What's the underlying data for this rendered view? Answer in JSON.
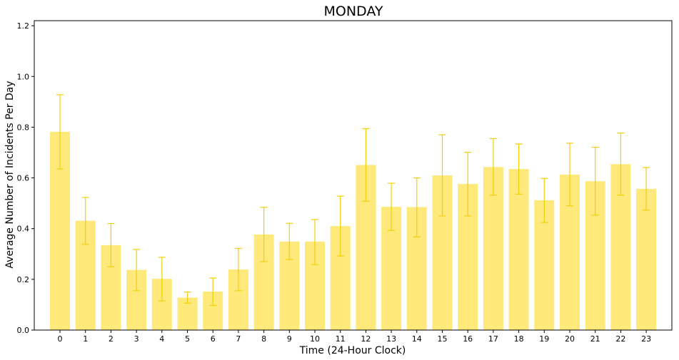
{
  "chart_data": {
    "type": "bar",
    "title": "MONDAY",
    "xlabel": "Time (24-Hour Clock)",
    "ylabel": "Average Number of Incidents Per Day",
    "categories": [
      "0",
      "1",
      "2",
      "3",
      "4",
      "5",
      "6",
      "7",
      "8",
      "9",
      "10",
      "11",
      "12",
      "13",
      "14",
      "15",
      "16",
      "17",
      "18",
      "19",
      "20",
      "21",
      "22",
      "23"
    ],
    "values": [
      0.782,
      0.431,
      0.335,
      0.237,
      0.202,
      0.128,
      0.152,
      0.239,
      0.377,
      0.349,
      0.349,
      0.41,
      0.651,
      0.486,
      0.485,
      0.61,
      0.576,
      0.643,
      0.635,
      0.512,
      0.613,
      0.587,
      0.654,
      0.557
    ],
    "error_low": [
      0.635,
      0.338,
      0.25,
      0.155,
      0.115,
      0.106,
      0.097,
      0.155,
      0.27,
      0.278,
      0.258,
      0.292,
      0.508,
      0.393,
      0.367,
      0.45,
      0.45,
      0.532,
      0.536,
      0.424,
      0.49,
      0.453,
      0.532,
      0.473
    ],
    "error_high": [
      0.928,
      0.523,
      0.42,
      0.318,
      0.287,
      0.15,
      0.205,
      0.322,
      0.484,
      0.421,
      0.436,
      0.528,
      0.794,
      0.579,
      0.6,
      0.77,
      0.701,
      0.755,
      0.734,
      0.598,
      0.737,
      0.721,
      0.777,
      0.641
    ],
    "ylim": [
      0,
      1.22
    ],
    "yticks": [
      "0.0",
      "0.2",
      "0.4",
      "0.6",
      "0.8",
      "1.0",
      "1.2"
    ],
    "grid": false,
    "colors": {
      "bar": "#ffe97a",
      "error": "#f2cf0a",
      "axis": "#000000"
    }
  }
}
